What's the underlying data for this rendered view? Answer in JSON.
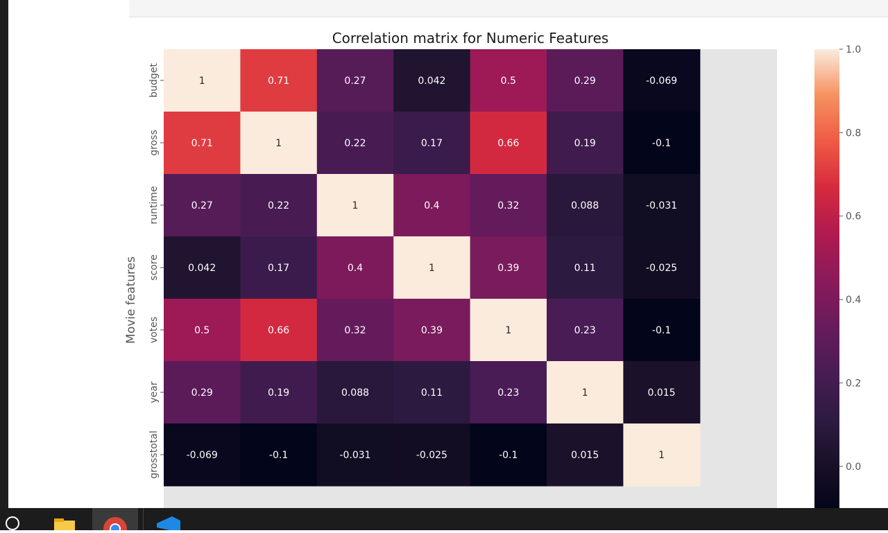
{
  "chart_data": {
    "type": "heatmap",
    "title": "Correlation matrix for Numeric Features",
    "ylabel": "Movie features",
    "xlabel": "",
    "labels": [
      "budget",
      "gross",
      "runtime",
      "score",
      "votes",
      "year",
      "grosstotal"
    ],
    "values": [
      [
        1,
        0.71,
        0.27,
        0.042,
        0.5,
        0.29,
        -0.069
      ],
      [
        0.71,
        1,
        0.22,
        0.17,
        0.66,
        0.19,
        -0.1
      ],
      [
        0.27,
        0.22,
        1,
        0.4,
        0.32,
        0.088,
        -0.031
      ],
      [
        0.042,
        0.17,
        0.4,
        1,
        0.39,
        0.11,
        -0.025
      ],
      [
        0.5,
        0.66,
        0.32,
        0.39,
        1,
        0.23,
        -0.1
      ],
      [
        0.29,
        0.19,
        0.088,
        0.11,
        0.23,
        1,
        0.015
      ],
      [
        -0.069,
        -0.1,
        -0.031,
        -0.025,
        -0.1,
        0.015,
        1
      ]
    ],
    "cell_text": [
      [
        "1",
        "0.71",
        "0.27",
        "0.042",
        "0.5",
        "0.29",
        "-0.069"
      ],
      [
        "0.71",
        "1",
        "0.22",
        "0.17",
        "0.66",
        "0.19",
        "-0.1"
      ],
      [
        "0.27",
        "0.22",
        "1",
        "0.4",
        "0.32",
        "0.088",
        "-0.031"
      ],
      [
        "0.042",
        "0.17",
        "0.4",
        "1",
        "0.39",
        "0.11",
        "-0.025"
      ],
      [
        "0.5",
        "0.66",
        "0.32",
        "0.39",
        "1",
        "0.23",
        "-0.1"
      ],
      [
        "0.29",
        "0.19",
        "0.088",
        "0.11",
        "0.23",
        "1",
        "0.015"
      ],
      [
        "-0.069",
        "-0.1",
        "-0.031",
        "-0.025",
        "-0.1",
        "0.015",
        "1"
      ]
    ],
    "colorbar": {
      "range": [
        -0.1,
        1.0
      ],
      "ticks": [
        0.0,
        0.2,
        0.4,
        0.6,
        0.8,
        1.0
      ],
      "tick_labels": [
        "0.0",
        "0.2",
        "0.4",
        "0.6",
        "0.8",
        "1.0"
      ],
      "colormap": "rocket"
    },
    "axes_background": "#e5e5e5"
  },
  "taskbar": {
    "icons": [
      "search-icon",
      "file-explorer-icon",
      "chrome-icon",
      "vscode-icon"
    ],
    "active": "chrome-icon"
  }
}
